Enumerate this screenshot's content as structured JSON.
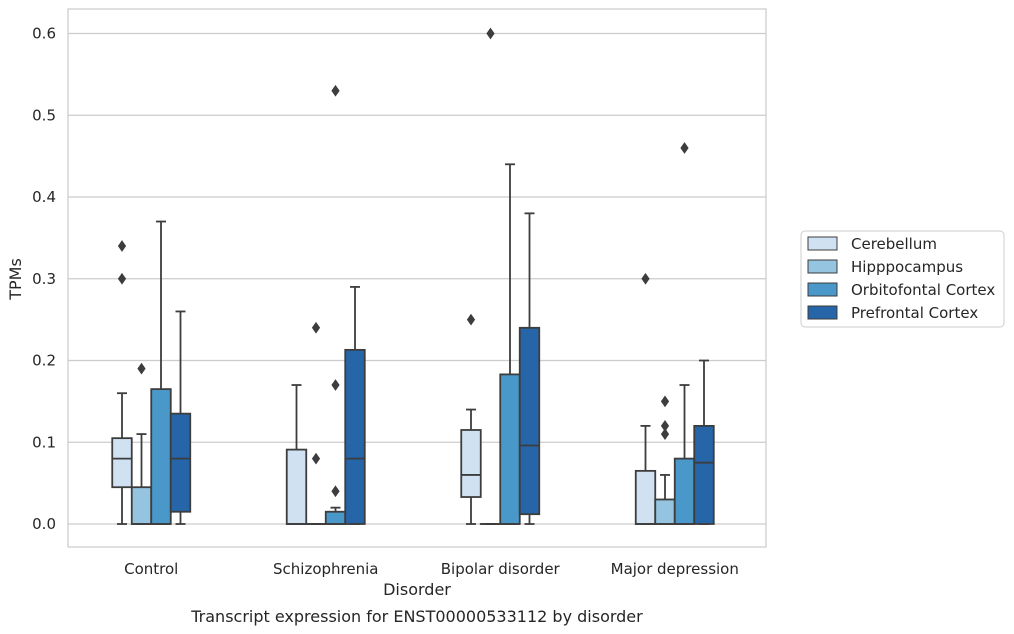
{
  "chart_data": {
    "type": "box",
    "title": "",
    "caption": "Transcript expression for ENST00000533112 by disorder",
    "xlabel": "Disorder",
    "ylabel": "TPMs",
    "ylim": [
      -0.03,
      0.63
    ],
    "yticks": [
      "0.0",
      "0.1",
      "0.2",
      "0.3",
      "0.4",
      "0.5",
      "0.6"
    ],
    "grid": "horizontal",
    "legend_position": "right",
    "categories": [
      "Control",
      "Schizophrenia",
      "Bipolar disorder",
      "Major depression"
    ],
    "series": [
      {
        "name": "Cerebellum",
        "color": "#d0e1f2",
        "boxes": [
          {
            "whislo": 0.0,
            "q1": 0.045,
            "med": 0.08,
            "q3": 0.105,
            "whishi": 0.16,
            "fliers": [
              0.3,
              0.34
            ]
          },
          {
            "whislo": 0.0,
            "q1": 0.0,
            "med": 0.0,
            "q3": 0.091,
            "whishi": 0.17,
            "fliers": []
          },
          {
            "whislo": 0.0,
            "q1": 0.033,
            "med": 0.06,
            "q3": 0.115,
            "whishi": 0.14,
            "fliers": [
              0.25
            ]
          },
          {
            "whislo": 0.0,
            "q1": 0.0,
            "med": 0.0,
            "q3": 0.065,
            "whishi": 0.12,
            "fliers": [
              0.3
            ]
          }
        ]
      },
      {
        "name": "Hipppocampus",
        "color": "#94c4df",
        "boxes": [
          {
            "whislo": 0.0,
            "q1": 0.0,
            "med": 0.0,
            "q3": 0.045,
            "whishi": 0.11,
            "fliers": [
              0.19
            ]
          },
          {
            "whislo": 0.0,
            "q1": 0.0,
            "med": 0.0,
            "q3": 0.0,
            "whishi": 0.0,
            "fliers": [
              0.08,
              0.24
            ]
          },
          {
            "whislo": 0.0,
            "q1": 0.0,
            "med": 0.0,
            "q3": 0.0,
            "whishi": 0.0,
            "fliers": [
              0.6
            ]
          },
          {
            "whislo": 0.0,
            "q1": 0.0,
            "med": 0.0,
            "q3": 0.03,
            "whishi": 0.06,
            "fliers": [
              0.11,
              0.12,
              0.15
            ]
          }
        ]
      },
      {
        "name": "Orbitofontal Cortex",
        "color": "#4a98c9",
        "boxes": [
          {
            "whislo": 0.0,
            "q1": 0.0,
            "med": 0.0,
            "q3": 0.165,
            "whishi": 0.37,
            "fliers": []
          },
          {
            "whislo": 0.0,
            "q1": 0.0,
            "med": 0.0,
            "q3": 0.015,
            "whishi": 0.02,
            "fliers": [
              0.04,
              0.17,
              0.53
            ]
          },
          {
            "whislo": 0.0,
            "q1": 0.0,
            "med": 0.0,
            "q3": 0.183,
            "whishi": 0.44,
            "fliers": []
          },
          {
            "whislo": 0.0,
            "q1": 0.0,
            "med": 0.0,
            "q3": 0.08,
            "whishi": 0.17,
            "fliers": [
              0.46
            ]
          }
        ]
      },
      {
        "name": "Prefrontal Cortex",
        "color": "#2565a8",
        "boxes": [
          {
            "whislo": 0.0,
            "q1": 0.015,
            "med": 0.08,
            "q3": 0.135,
            "whishi": 0.26,
            "fliers": []
          },
          {
            "whislo": 0.0,
            "q1": 0.0,
            "med": 0.08,
            "q3": 0.213,
            "whishi": 0.29,
            "fliers": []
          },
          {
            "whislo": 0.0,
            "q1": 0.012,
            "med": 0.096,
            "q3": 0.24,
            "whishi": 0.38,
            "fliers": []
          },
          {
            "whislo": 0.0,
            "q1": 0.0,
            "med": 0.075,
            "q3": 0.12,
            "whishi": 0.2,
            "fliers": []
          }
        ]
      }
    ]
  }
}
